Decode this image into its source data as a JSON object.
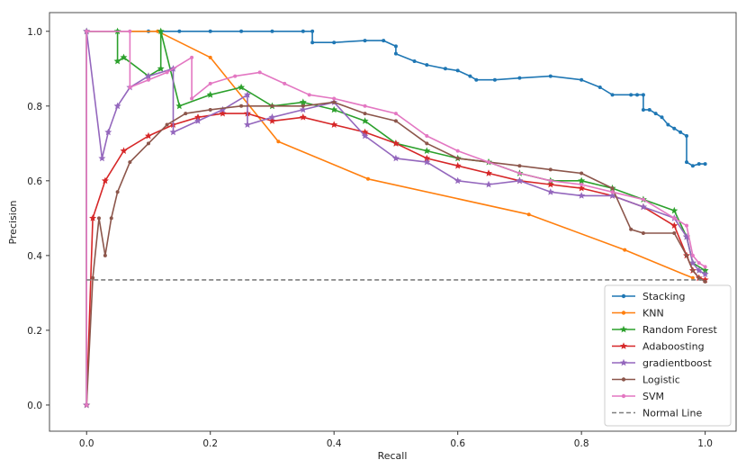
{
  "chart_data": {
    "type": "line",
    "title": "",
    "xlabel": "Recall",
    "ylabel": "Precision",
    "xlim": [
      -0.06,
      1.05
    ],
    "ylim": [
      -0.07,
      1.05
    ],
    "xticks": [
      0.0,
      0.2,
      0.4,
      0.6,
      0.8,
      1.0
    ],
    "xtick_labels": [
      "0.0",
      "0.2",
      "0.4",
      "0.6",
      "0.8",
      "1.0"
    ],
    "yticks": [
      0.0,
      0.2,
      0.4,
      0.6,
      0.8,
      1.0
    ],
    "ytick_labels": [
      "0.0",
      "0.2",
      "0.4",
      "0.6",
      "0.8",
      "1.0"
    ],
    "grid": false,
    "legend_position": "bottom-right",
    "series": [
      {
        "name": "Stacking",
        "color": "#1f77b4",
        "marker": "point",
        "x": [
          0,
          0,
          0.05,
          0.1,
          0.15,
          0.2,
          0.25,
          0.3,
          0.35,
          0.365,
          0.365,
          0.4,
          0.45,
          0.48,
          0.5,
          0.5,
          0.53,
          0.55,
          0.58,
          0.6,
          0.62,
          0.63,
          0.66,
          0.7,
          0.75,
          0.8,
          0.83,
          0.85,
          0.88,
          0.89,
          0.9,
          0.9,
          0.91,
          0.92,
          0.93,
          0.94,
          0.95,
          0.96,
          0.97,
          0.97,
          0.98,
          0.99,
          1.0
        ],
        "y": [
          0,
          1.0,
          1.0,
          1.0,
          1.0,
          1.0,
          1.0,
          1.0,
          1.0,
          1.0,
          0.97,
          0.97,
          0.975,
          0.975,
          0.96,
          0.94,
          0.92,
          0.91,
          0.9,
          0.895,
          0.88,
          0.87,
          0.87,
          0.875,
          0.88,
          0.87,
          0.85,
          0.83,
          0.83,
          0.83,
          0.83,
          0.79,
          0.79,
          0.78,
          0.77,
          0.75,
          0.74,
          0.73,
          0.72,
          0.65,
          0.64,
          0.645,
          0.645
        ]
      },
      {
        "name": "KNN",
        "color": "#ff7f0e",
        "marker": "point",
        "x": [
          0,
          0,
          0.115,
          0.2,
          0.31,
          0.455,
          0.715,
          0.87,
          0.98
        ],
        "y": [
          0,
          1.0,
          1.0,
          0.93,
          0.705,
          0.605,
          0.51,
          0.415,
          0.34
        ]
      },
      {
        "name": "Random Forest",
        "color": "#2ca02c",
        "marker": "star",
        "x": [
          0,
          0,
          0.05,
          0.05,
          0.06,
          0.1,
          0.12,
          0.12,
          0.15,
          0.2,
          0.25,
          0.3,
          0.35,
          0.4,
          0.45,
          0.5,
          0.55,
          0.6,
          0.65,
          0.7,
          0.75,
          0.8,
          0.85,
          0.9,
          0.95,
          0.97,
          0.98,
          1.0
        ],
        "y": [
          0,
          1.0,
          1.0,
          0.92,
          0.93,
          0.88,
          0.9,
          1.0,
          0.8,
          0.83,
          0.85,
          0.8,
          0.81,
          0.79,
          0.76,
          0.7,
          0.68,
          0.66,
          0.65,
          0.62,
          0.6,
          0.6,
          0.58,
          0.55,
          0.52,
          0.45,
          0.38,
          0.36
        ]
      },
      {
        "name": "Adaboosting",
        "color": "#d62728",
        "marker": "star",
        "x": [
          0,
          0.01,
          0.03,
          0.06,
          0.1,
          0.14,
          0.18,
          0.22,
          0.26,
          0.3,
          0.35,
          0.4,
          0.45,
          0.5,
          0.55,
          0.6,
          0.65,
          0.7,
          0.75,
          0.8,
          0.85,
          0.9,
          0.95,
          0.97,
          0.98,
          0.99,
          1.0
        ],
        "y": [
          0,
          0.5,
          0.6,
          0.68,
          0.72,
          0.75,
          0.77,
          0.78,
          0.78,
          0.76,
          0.77,
          0.75,
          0.73,
          0.7,
          0.66,
          0.64,
          0.62,
          0.6,
          0.59,
          0.58,
          0.56,
          0.53,
          0.48,
          0.4,
          0.36,
          0.34,
          0.335
        ]
      },
      {
        "name": "gradientboost",
        "color": "#9467bd",
        "marker": "star",
        "x": [
          0,
          0,
          0.025,
          0.035,
          0.05,
          0.07,
          0.1,
          0.14,
          0.14,
          0.18,
          0.22,
          0.26,
          0.26,
          0.3,
          0.35,
          0.4,
          0.45,
          0.5,
          0.55,
          0.6,
          0.65,
          0.7,
          0.75,
          0.8,
          0.85,
          0.9,
          0.95,
          0.97,
          0.98,
          0.99,
          1.0
        ],
        "y": [
          0,
          1.0,
          0.66,
          0.73,
          0.8,
          0.85,
          0.88,
          0.9,
          0.73,
          0.76,
          0.79,
          0.83,
          0.75,
          0.77,
          0.79,
          0.81,
          0.72,
          0.66,
          0.65,
          0.6,
          0.59,
          0.6,
          0.57,
          0.56,
          0.56,
          0.53,
          0.5,
          0.45,
          0.38,
          0.36,
          0.35
        ]
      },
      {
        "name": "Logistic",
        "color": "#8c564b",
        "marker": "point",
        "x": [
          0,
          0.01,
          0.02,
          0.03,
          0.04,
          0.05,
          0.07,
          0.1,
          0.13,
          0.16,
          0.2,
          0.25,
          0.3,
          0.35,
          0.4,
          0.45,
          0.5,
          0.55,
          0.6,
          0.65,
          0.7,
          0.75,
          0.8,
          0.85,
          0.88,
          0.9,
          0.95,
          0.97,
          0.98,
          0.99,
          1.0
        ],
        "y": [
          0,
          0.34,
          0.5,
          0.4,
          0.5,
          0.57,
          0.65,
          0.7,
          0.75,
          0.78,
          0.79,
          0.8,
          0.8,
          0.8,
          0.81,
          0.78,
          0.76,
          0.7,
          0.66,
          0.65,
          0.64,
          0.63,
          0.62,
          0.58,
          0.47,
          0.46,
          0.46,
          0.4,
          0.36,
          0.34,
          0.33
        ]
      },
      {
        "name": "SVM",
        "color": "#e377c2",
        "marker": "point",
        "x": [
          0,
          0,
          0.07,
          0.07,
          0.1,
          0.13,
          0.17,
          0.17,
          0.2,
          0.24,
          0.28,
          0.32,
          0.36,
          0.4,
          0.45,
          0.5,
          0.55,
          0.6,
          0.65,
          0.7,
          0.75,
          0.8,
          0.85,
          0.9,
          0.95,
          0.97,
          0.98,
          0.99,
          1.0
        ],
        "y": [
          0,
          1.0,
          1.0,
          0.85,
          0.87,
          0.89,
          0.93,
          0.82,
          0.86,
          0.88,
          0.89,
          0.86,
          0.83,
          0.82,
          0.8,
          0.78,
          0.72,
          0.68,
          0.65,
          0.62,
          0.6,
          0.59,
          0.57,
          0.55,
          0.5,
          0.48,
          0.4,
          0.38,
          0.37
        ]
      },
      {
        "name": "Normal Line",
        "color": "#7f7f7f",
        "marker": "none",
        "dashed": true,
        "x": [
          0,
          1.0
        ],
        "y": [
          0.335,
          0.335
        ]
      }
    ]
  }
}
